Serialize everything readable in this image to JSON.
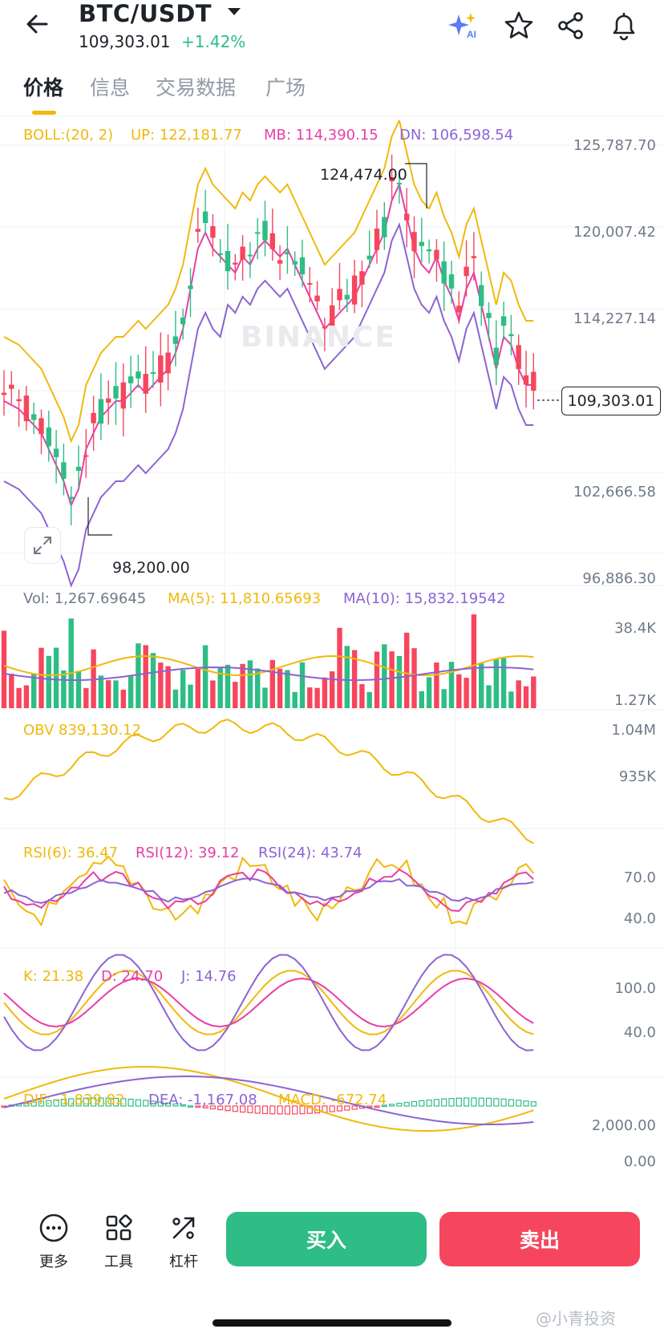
{
  "header": {
    "pair": "BTC/USDT",
    "price": "109,303.01",
    "change": "+1.42%"
  },
  "tabs": [
    "价格",
    "信息",
    "交易数据",
    "广场"
  ],
  "boll": {
    "label": "BOLL:(20, 2)",
    "up": "UP: 122,181.77",
    "mb": "MB: 114,390.15",
    "dn": "DN: 106,598.54"
  },
  "price_axis": [
    "125,787.70",
    "120,007.42",
    "114,227.14",
    "102,666.58",
    "96,886.30"
  ],
  "current_price_tag": "109,303.01",
  "annotations": {
    "high": "124,474.00",
    "low": "98,200.00"
  },
  "vol": {
    "label": "Vol: 1,267.69645",
    "ma5": "MA(5): 11,810.65693",
    "ma10": "MA(10): 15,832.19542",
    "axis": [
      "38.4K",
      "1.27K"
    ]
  },
  "obv": {
    "label": "OBV 839,130.12",
    "axis": [
      "1.04M",
      "935K"
    ]
  },
  "rsi": {
    "rsi6": "RSI(6): 36.47",
    "rsi12": "RSI(12): 39.12",
    "rsi24": "RSI(24): 43.74",
    "axis": [
      "70.0",
      "40.0"
    ]
  },
  "kdj": {
    "k": "K: 21.38",
    "d": "D: 24.70",
    "j": "J: 14.76",
    "axis": [
      "100.0",
      "40.0"
    ]
  },
  "macd": {
    "dif": "DIF: -1,839.82",
    "dea": "DEA: -1,167.08",
    "macd": "MACD: -672.74",
    "axis": [
      "2,000.00",
      "0.00"
    ]
  },
  "watermark": "BINANCE",
  "bottom": {
    "more": "更多",
    "tools": "工具",
    "leverage": "杠杆",
    "buy": "买入",
    "sell": "卖出"
  },
  "corner_mark": "@小青投资",
  "colors": {
    "up": "#2ebd85",
    "down": "#f6465d",
    "yellow": "#f0b90b",
    "magenta": "#e83ea7",
    "purple": "#8c63d3"
  },
  "icons": [
    "back-arrow-icon",
    "dropdown-caret-icon",
    "ai-sparkle-icon",
    "star-icon",
    "share-icon",
    "bell-icon",
    "expand-icon",
    "more-icon",
    "tools-icon",
    "leverage-icon"
  ]
}
